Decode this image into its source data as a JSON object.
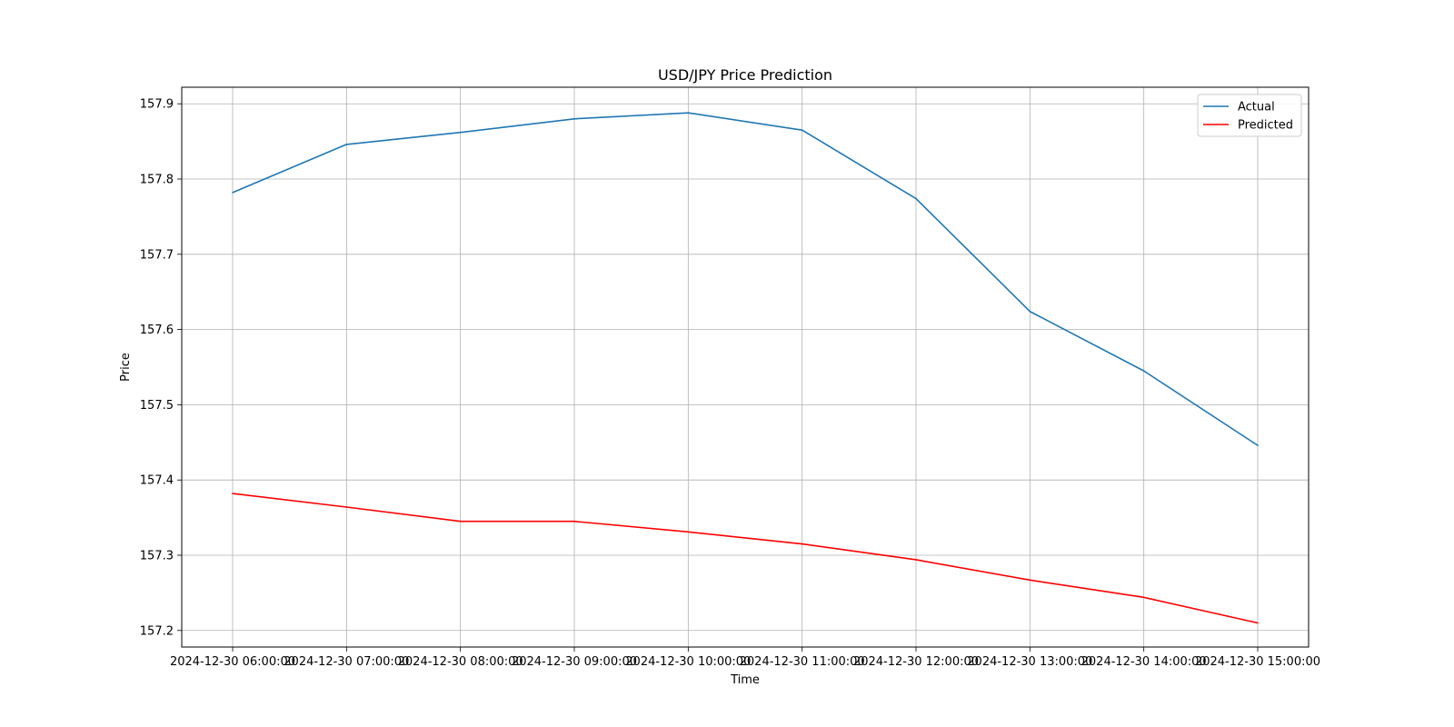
{
  "chart_data": {
    "type": "line",
    "title": "USD/JPY Price Prediction",
    "xlabel": "Time",
    "ylabel": "Price",
    "x": [
      "2024-12-30 06:00:00",
      "2024-12-30 07:00:00",
      "2024-12-30 08:00:00",
      "2024-12-30 09:00:00",
      "2024-12-30 10:00:00",
      "2024-12-30 11:00:00",
      "2024-12-30 12:00:00",
      "2024-12-30 13:00:00",
      "2024-12-30 14:00:00",
      "2024-12-30 15:00:00"
    ],
    "yticks": [
      "157.2",
      "157.3",
      "157.4",
      "157.5",
      "157.6",
      "157.7",
      "157.8",
      "157.9"
    ],
    "ylim": [
      157.178,
      157.922
    ],
    "grid": true,
    "legend_position": "top-right",
    "series": [
      {
        "name": "Actual",
        "color": "#1f77b4",
        "values": [
          157.782,
          157.846,
          157.862,
          157.88,
          157.888,
          157.865,
          157.774,
          157.624,
          157.545,
          157.446
        ]
      },
      {
        "name": "Predicted",
        "color": "#ff0000",
        "values": [
          157.382,
          157.364,
          157.345,
          157.345,
          157.331,
          157.315,
          157.294,
          157.267,
          157.244,
          157.21
        ]
      }
    ]
  }
}
